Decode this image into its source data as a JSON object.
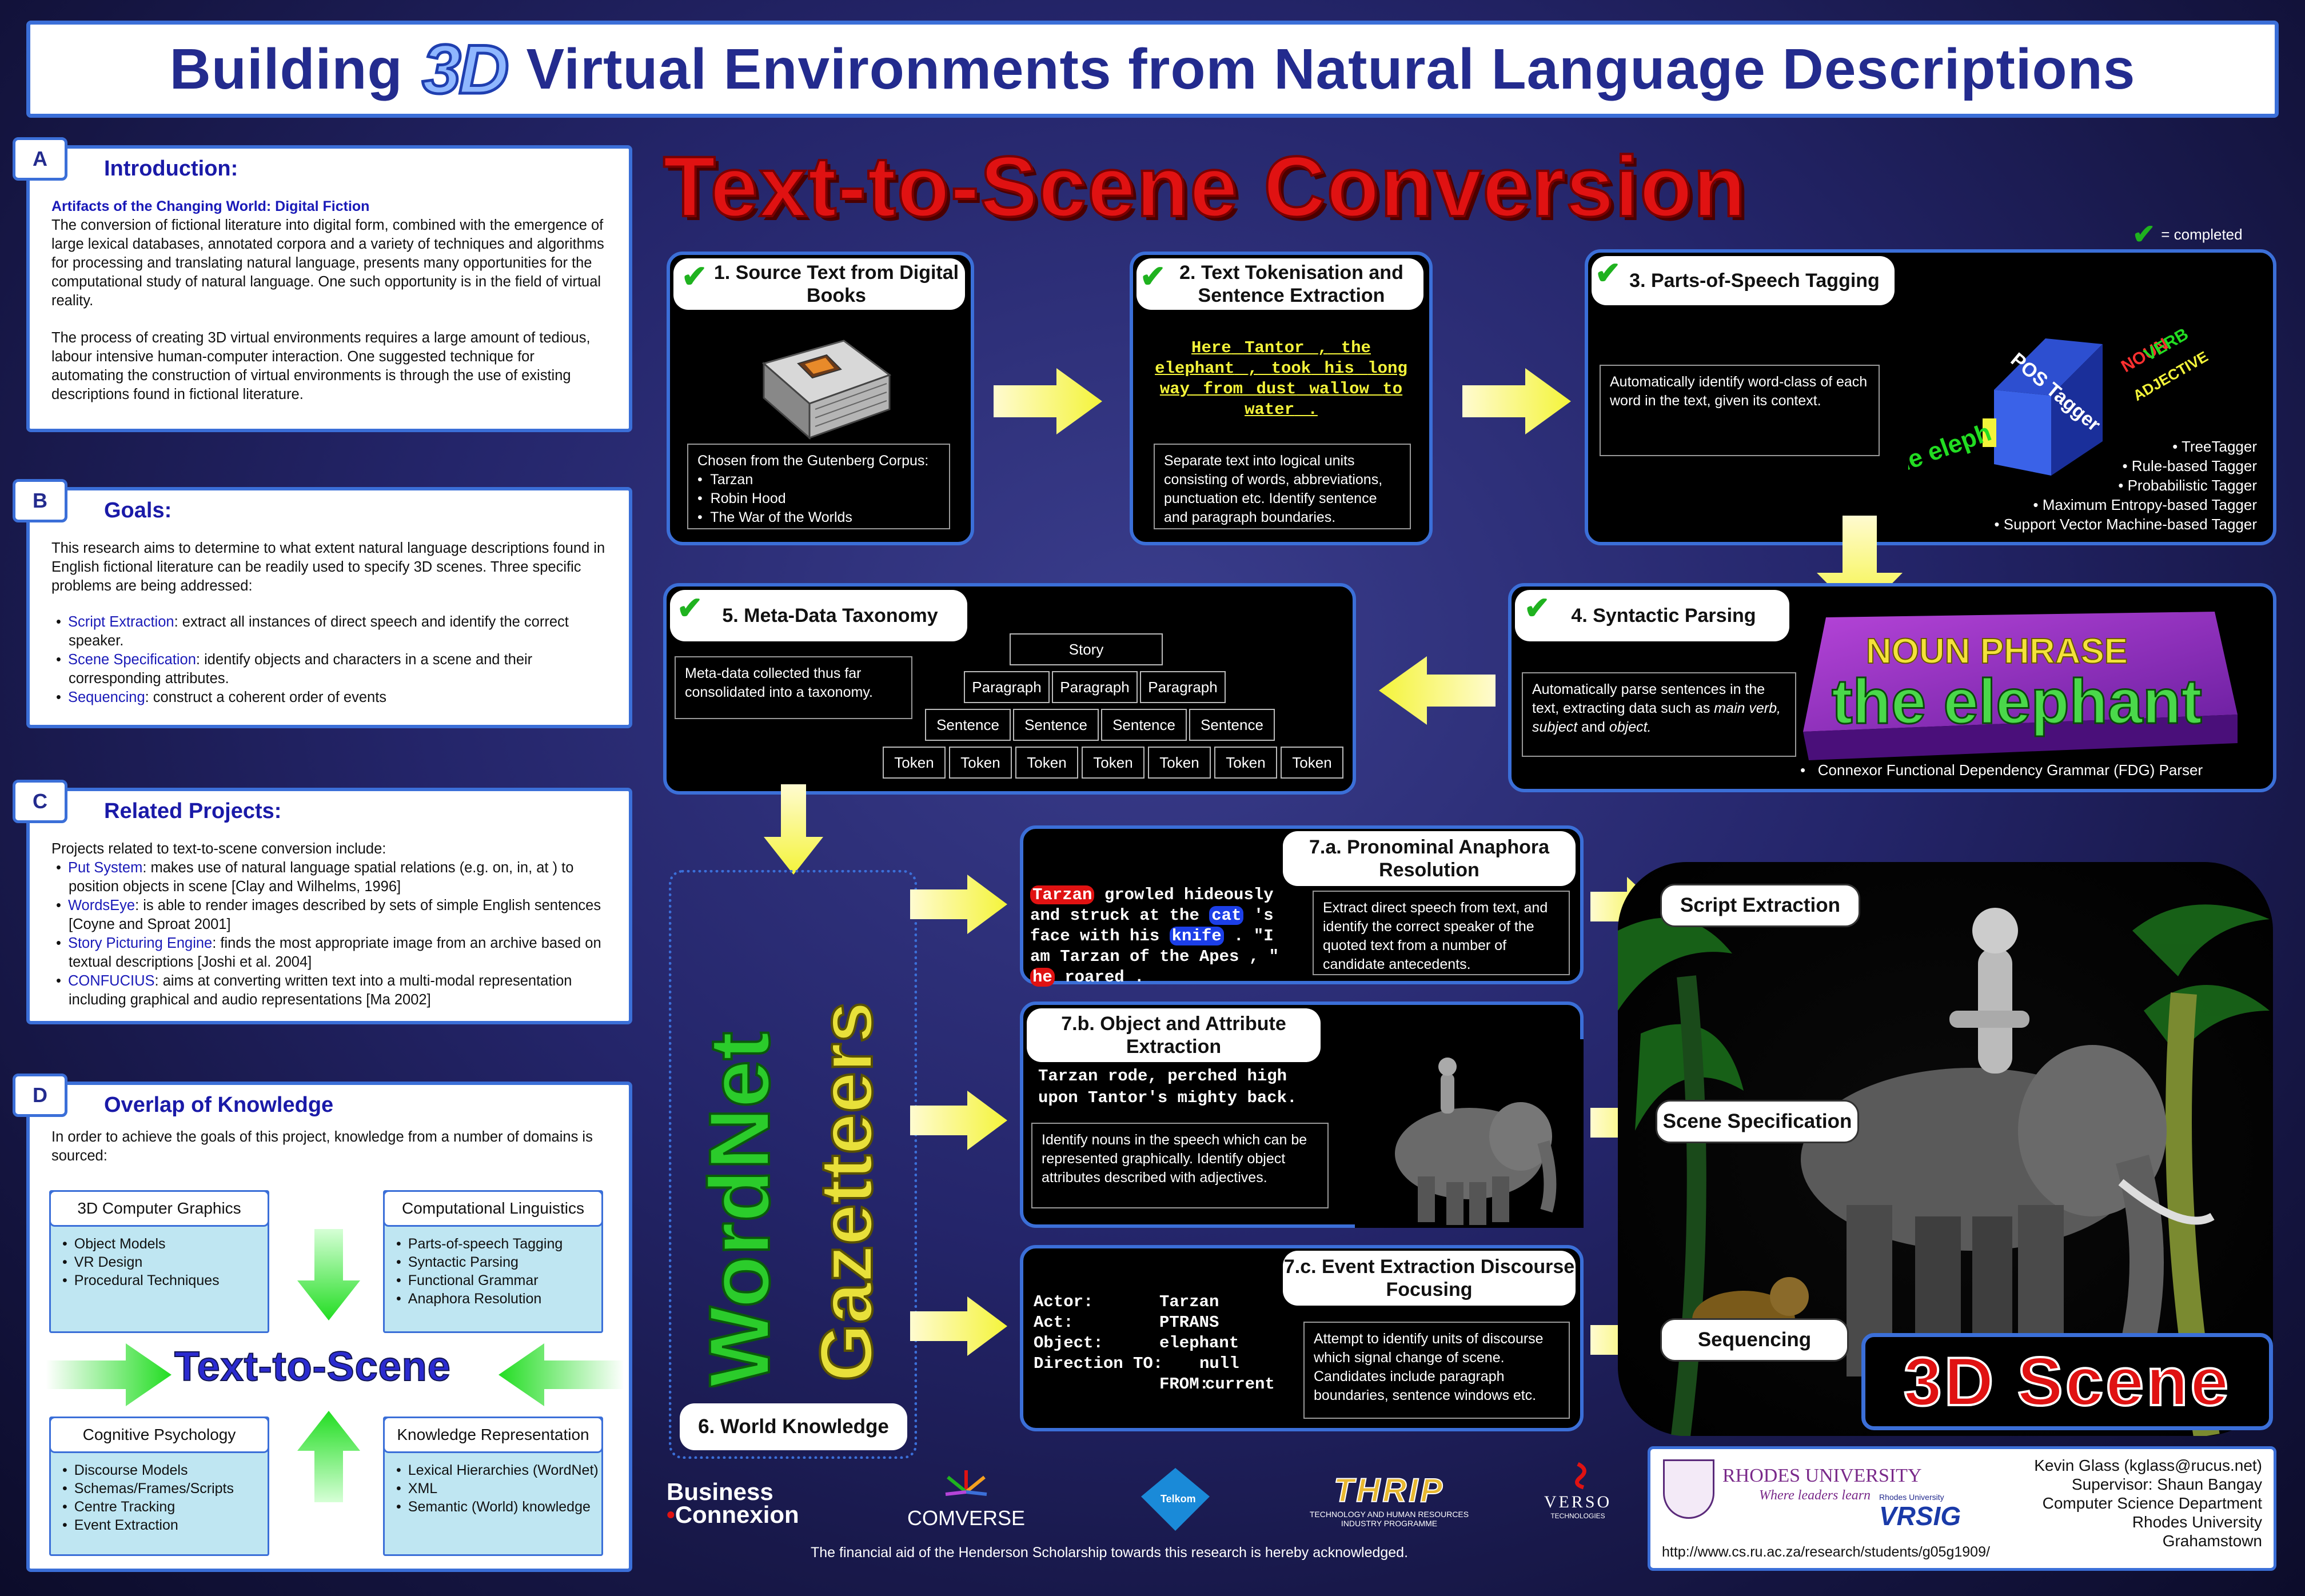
{
  "title": {
    "part1": "Building",
    "threeD": "3D",
    "part2": "Virtual Environments from Natural Language Descriptions"
  },
  "main_heading": "Text-to-Scene Conversion",
  "completed_legend": "= completed",
  "sections": {
    "intro": {
      "badge": "A",
      "heading": "Introduction:",
      "subheading": "Artifacts of the Changing World: Digital Fiction",
      "p1": "The conversion of fictional literature into digital form, combined with the emergence of large lexical databases, annotated corpora and a variety of techniques and algorithms for processing and translating natural language, presents many opportunities for the computational study of natural language. One such opportunity is in the field of virtual reality.",
      "p2": "The process of creating 3D virtual environments requires a large amount of tedious, labour intensive human-computer interaction. One suggested technique for automating the construction of virtual environments  is through the use of existing descriptions found in fictional literature."
    },
    "goals": {
      "badge": "B",
      "heading": "Goals:",
      "p1": "This research aims to determine to what extent natural language  descriptions found in English fictional literature can be readily used to specify 3D scenes. Three specific problems are being addressed:",
      "items": [
        {
          "term": "Script Extraction",
          "text": ": extract all instances of direct speech and identify the correct speaker."
        },
        {
          "term": "Scene Specification",
          "text": ": identify objects and characters in a scene and their corresponding attributes."
        },
        {
          "term": "Sequencing",
          "text": ": construct a coherent order of events"
        }
      ]
    },
    "related": {
      "badge": "C",
      "heading": "Related Projects:",
      "intro": "Projects related to text-to-scene conversion include:",
      "items": [
        {
          "term": "Put System",
          "text": ": makes use of natural language spatial relations (e.g. on, in, at ) to position objects in scene [Clay and Wilhelms, 1996]"
        },
        {
          "term": "WordsEye",
          "text": ": is able to render images described by sets of simple English sentences [Coyne and Sproat 2001]"
        },
        {
          "term": "Story Picturing Engine",
          "text": ": finds the most appropriate image from an archive based on textual descriptions [Joshi et al. 2004]"
        },
        {
          "term": "CONFUCIUS",
          "text": ":  aims at converting written text into a multi-modal representation including graphical and audio representations [Ma 2002]"
        }
      ]
    },
    "overlap": {
      "badge": "D",
      "heading": "Overlap of Knowledge",
      "intro": "In order to achieve the goals of this project, knowledge from a number of domains is sourced:",
      "center": "Text-to-Scene",
      "boxes": [
        {
          "title": "3D Computer Graphics",
          "items": [
            "Object Models",
            "VR Design",
            "Procedural Techniques"
          ]
        },
        {
          "title": "Computational Linguistics",
          "items": [
            "Parts-of-speech Tagging",
            "Syntactic Parsing",
            "Functional Grammar",
            "Anaphora Resolution"
          ]
        },
        {
          "title": "Cognitive Psychology",
          "items": [
            "Discourse Models",
            "Schemas/Frames/Scripts",
            "Centre Tracking",
            "Event Extraction"
          ]
        },
        {
          "title": "Knowledge Representation",
          "items": [
            "Lexical Hierarchies (WordNet)",
            "XML",
            "Semantic (World) knowledge"
          ]
        }
      ]
    }
  },
  "steps": {
    "s1": {
      "title": "1. Source Text from Digital Books",
      "desc_intro": "Chosen from the Gutenberg Corpus:",
      "items": [
        "Tarzan",
        "Robin Hood",
        "The War of the Worlds"
      ]
    },
    "s2": {
      "title": "2. Text Tokenisation and Sentence Extraction",
      "tokens_l1": [
        "Here",
        "Tantor",
        ",",
        "the"
      ],
      "tokens_l2": [
        "elephant",
        ",",
        "took",
        "his",
        "long"
      ],
      "tokens_l3": [
        "way",
        "from",
        "dust",
        "wallow",
        "to"
      ],
      "tokens_l4": [
        "water",
        "."
      ],
      "desc": "Separate text into logical units consisting of words, abbreviations, punctuation etc. Identify sentence and paragraph  boundaries."
    },
    "s3": {
      "title": "3. Parts-of-Speech Tagging",
      "desc": "Automatically identify word-class of each word in the text, given its context.",
      "cube_label": "POS Tagger",
      "stream_words": ", the eleph",
      "tags": [
        "NOUN",
        "VERB",
        "ADJECTIVE"
      ],
      "items": [
        "TreeTagger",
        "Rule-based Tagger",
        "Probabilistic Tagger",
        "Maximum Entropy-based Tagger",
        "Support Vector Machine-based Tagger"
      ]
    },
    "s4": {
      "title": "4. Syntactic Parsing",
      "desc_pre": "Automatically parse sentences in the text, extracting data such as ",
      "desc_em": "main verb, subject",
      "desc_mid": " and ",
      "desc_em2": "object.",
      "np_label": "NOUN PHRASE",
      "np_text": "the elephant",
      "item": "Connexor Functional Dependency Grammar (FDG) Parser"
    },
    "s5": {
      "title": "5. Meta-Data Taxonomy",
      "desc": "Meta-data collected thus far consolidated into a taxonomy.",
      "root": "Story",
      "paragraph": "Paragraph",
      "sentence": "Sentence",
      "token": "Token"
    },
    "s6": {
      "title": "6. World Knowledge",
      "word1": "WordNet",
      "word2": "Gazetteers"
    },
    "s7a": {
      "title": "7.a. Pronominal Anaphora Resolution",
      "line1": [
        "Tarzan",
        " growled hideously"
      ],
      "line2": [
        "and struck at the ",
        "cat",
        " 's"
      ],
      "line3": [
        "face with his ",
        "knife",
        " . \"I"
      ],
      "line4": "am Tarzan of the Apes , \"",
      "line5": [
        "he",
        " roared ."
      ],
      "desc": "Extract direct speech from text, and identify the correct speaker of the quoted text from a number of candidate antecedents."
    },
    "s7b": {
      "title": "7.b. Object and Attribute Extraction",
      "text1": "Tarzan rode, perched high",
      "text2": "upon Tantor's mighty back.",
      "desc": "Identify nouns in the speech which can be represented graphically. Identify object attributes described with adjectives."
    },
    "s7c": {
      "title": "7.c. Event Extraction Discourse Focusing",
      "rows": [
        [
          "Actor:",
          "Tarzan"
        ],
        [
          "Act:",
          "PTRANS"
        ],
        [
          "Object:",
          "elephant"
        ],
        [
          "Direction TO:",
          "null"
        ],
        [
          "FROM:",
          "current"
        ]
      ],
      "desc": "Attempt to identify units of discourse which signal change of scene. Candidates include paragraph boundaries, sentence windows etc."
    }
  },
  "outputs": {
    "script": "Script Extraction",
    "scene": "Scene Specification",
    "seq": "Sequencing",
    "scene3d": "3D Scene"
  },
  "footer": {
    "logos": {
      "bc1": "Business",
      "bc2": "Connexion",
      "comverse": "COMVERSE",
      "telkom": "Telkom",
      "thrip": "THRIP",
      "thrip_sub1": "TECHNOLOGY AND HUMAN RESOURCES",
      "thrip_sub2": "INDUSTRY PROGRAMME",
      "verso": "VERSO",
      "verso_sub": "TECHNOLOGIES"
    },
    "ack": "The financial aid of the Henderson Scholarship towards this research is hereby acknowledged.",
    "contact": {
      "uni": "RHODES UNIVERSITY",
      "motto": "Where leaders learn",
      "vrsig": "VRSIG",
      "vrsig_top": "Rhodes University",
      "url": "http://www.cs.ru.ac.za/research/students/g05g1909/",
      "lines": [
        "Kevin Glass  (kglass@rucus.net)",
        "Supervisor: Shaun Bangay",
        "Computer Science Department",
        "Rhodes University",
        "Grahamstown"
      ]
    }
  },
  "colors": {
    "accent": "#3b6fd8",
    "heading": "#232b8e",
    "red": "#e01212",
    "yellow": "#f4f43a",
    "green": "#1fb21f"
  }
}
